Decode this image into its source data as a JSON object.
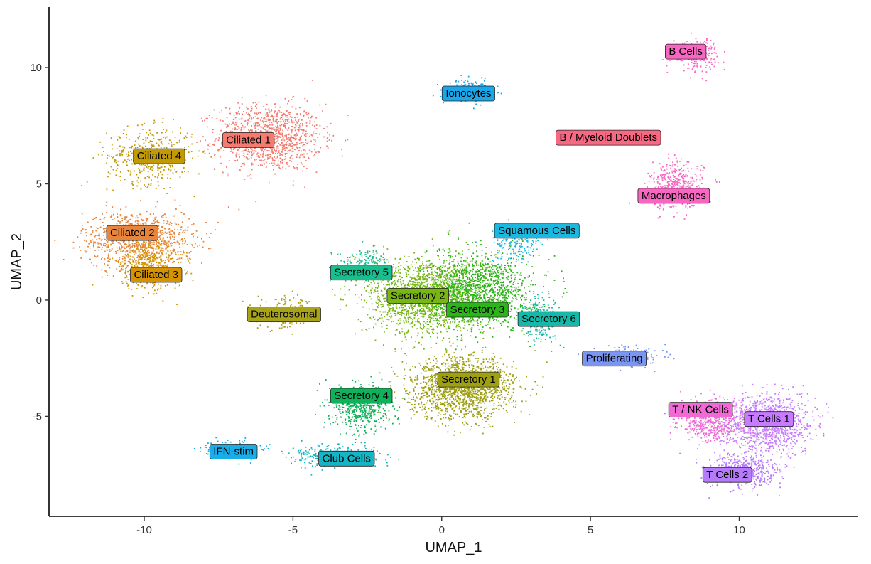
{
  "chart_data": {
    "type": "scatter",
    "title": "",
    "xlabel": "UMAP_1",
    "ylabel": "UMAP_2",
    "xlim": [
      -13.2,
      14
    ],
    "ylim": [
      -9.3,
      12.6
    ],
    "x_ticks": [
      -10,
      -5,
      0,
      5,
      10
    ],
    "y_ticks": [
      -5,
      0,
      5,
      10
    ],
    "x_tick_labels": [
      "-10",
      "-5",
      "0",
      "5",
      "10"
    ],
    "y_tick_labels": [
      "-5",
      "0",
      "5",
      "10"
    ],
    "grid": false,
    "legend": "none",
    "clusters": [
      {
        "name": "Ciliated 1",
        "color": "#F37B70",
        "center": [
          -5.8,
          7.0
        ],
        "spread": [
          1.6,
          1.3
        ],
        "count": 1100,
        "label_pos": [
          -6.5,
          6.9
        ]
      },
      {
        "name": "Ciliated 4",
        "color": "#C29A05",
        "center": [
          -9.8,
          6.2
        ],
        "spread": [
          1.3,
          1.1
        ],
        "count": 450,
        "label_pos": [
          -9.5,
          6.2
        ]
      },
      {
        "name": "Ciliated 2",
        "color": "#E8853C",
        "center": [
          -10.2,
          2.7
        ],
        "spread": [
          1.7,
          1.0
        ],
        "count": 850,
        "label_pos": [
          -10.4,
          2.9
        ]
      },
      {
        "name": "Ciliated 3",
        "color": "#D49205",
        "center": [
          -9.9,
          1.5
        ],
        "spread": [
          1.1,
          0.9
        ],
        "count": 500,
        "label_pos": [
          -9.6,
          1.1
        ]
      },
      {
        "name": "Deuterosomal",
        "color": "#A8A31A",
        "center": [
          -5.2,
          -0.6
        ],
        "spread": [
          0.9,
          0.6
        ],
        "count": 200,
        "label_pos": [
          -5.3,
          -0.6
        ]
      },
      {
        "name": "Ionocytes",
        "color": "#1AA6E8",
        "center": [
          1.0,
          9.0
        ],
        "spread": [
          0.7,
          0.4
        ],
        "count": 180,
        "label_pos": [
          0.9,
          8.9
        ]
      },
      {
        "name": "B Cells",
        "color": "#F766C1",
        "center": [
          8.5,
          10.6
        ],
        "spread": [
          0.7,
          0.6
        ],
        "count": 220,
        "label_pos": [
          8.2,
          10.7
        ]
      },
      {
        "name": "B / Myeloid Doublets",
        "color": "#F76882",
        "center": [
          5.8,
          7.0
        ],
        "spread": [
          0.6,
          0.2
        ],
        "count": 40,
        "label_pos": [
          5.6,
          7.0
        ]
      },
      {
        "name": "Macrophages",
        "color": "#F766C1",
        "center": [
          7.9,
          4.9
        ],
        "spread": [
          0.8,
          0.9
        ],
        "count": 420,
        "label_pos": [
          7.8,
          4.5
        ]
      },
      {
        "name": "Squamous Cells",
        "color": "#1BB8E0",
        "center": [
          2.5,
          2.4
        ],
        "spread": [
          0.8,
          0.7
        ],
        "count": 150,
        "label_pos": [
          3.2,
          3.0
        ]
      },
      {
        "name": "Secretory 5",
        "color": "#19BE8F",
        "center": [
          -2.6,
          1.5
        ],
        "spread": [
          0.8,
          0.6
        ],
        "count": 200,
        "label_pos": [
          -2.7,
          1.2
        ]
      },
      {
        "name": "Secretory 2",
        "color": "#78B713",
        "center": [
          -0.5,
          0.2
        ],
        "spread": [
          1.8,
          1.5
        ],
        "count": 1700,
        "label_pos": [
          -0.8,
          0.2
        ]
      },
      {
        "name": "Secretory 3",
        "color": "#2CB51A",
        "center": [
          1.3,
          0.4
        ],
        "spread": [
          1.6,
          1.4
        ],
        "count": 1300,
        "label_pos": [
          1.2,
          -0.4
        ]
      },
      {
        "name": "Secretory 6",
        "color": "#16B8A8",
        "center": [
          3.3,
          -0.8
        ],
        "spread": [
          0.6,
          0.9
        ],
        "count": 250,
        "label_pos": [
          3.6,
          -0.8
        ]
      },
      {
        "name": "Secretory 1",
        "color": "#9E9F12",
        "center": [
          0.7,
          -3.8
        ],
        "spread": [
          1.6,
          1.2
        ],
        "count": 1500,
        "label_pos": [
          0.9,
          -3.4
        ]
      },
      {
        "name": "Secretory 4",
        "color": "#0FB25A",
        "center": [
          -2.7,
          -4.6
        ],
        "spread": [
          0.9,
          0.9
        ],
        "count": 500,
        "label_pos": [
          -2.7,
          -4.1
        ]
      },
      {
        "name": "Club Cells",
        "color": "#14B5C4",
        "center": [
          -3.6,
          -6.7
        ],
        "spread": [
          1.3,
          0.4
        ],
        "count": 300,
        "label_pos": [
          -3.2,
          -6.8
        ]
      },
      {
        "name": "IFN-stim",
        "color": "#1AADE8",
        "center": [
          -7.0,
          -6.4
        ],
        "spread": [
          0.8,
          0.3
        ],
        "count": 200,
        "label_pos": [
          -7.0,
          -6.5
        ]
      },
      {
        "name": "Proliferating",
        "color": "#7A95F2",
        "center": [
          6.2,
          -2.4
        ],
        "spread": [
          1.1,
          0.4
        ],
        "count": 180,
        "label_pos": [
          5.8,
          -2.5
        ]
      },
      {
        "name": "T / NK Cells",
        "color": "#F069D4",
        "center": [
          9.1,
          -5.2
        ],
        "spread": [
          1.0,
          0.8
        ],
        "count": 500,
        "label_pos": [
          8.7,
          -4.7
        ]
      },
      {
        "name": "T Cells 1",
        "color": "#C77CFF",
        "center": [
          11.0,
          -5.3
        ],
        "spread": [
          1.3,
          1.1
        ],
        "count": 1100,
        "label_pos": [
          11.0,
          -5.1
        ]
      },
      {
        "name": "T Cells 2",
        "color": "#B57BFA",
        "center": [
          10.1,
          -7.4
        ],
        "spread": [
          1.1,
          0.7
        ],
        "count": 500,
        "label_pos": [
          9.6,
          -7.5
        ]
      }
    ]
  }
}
